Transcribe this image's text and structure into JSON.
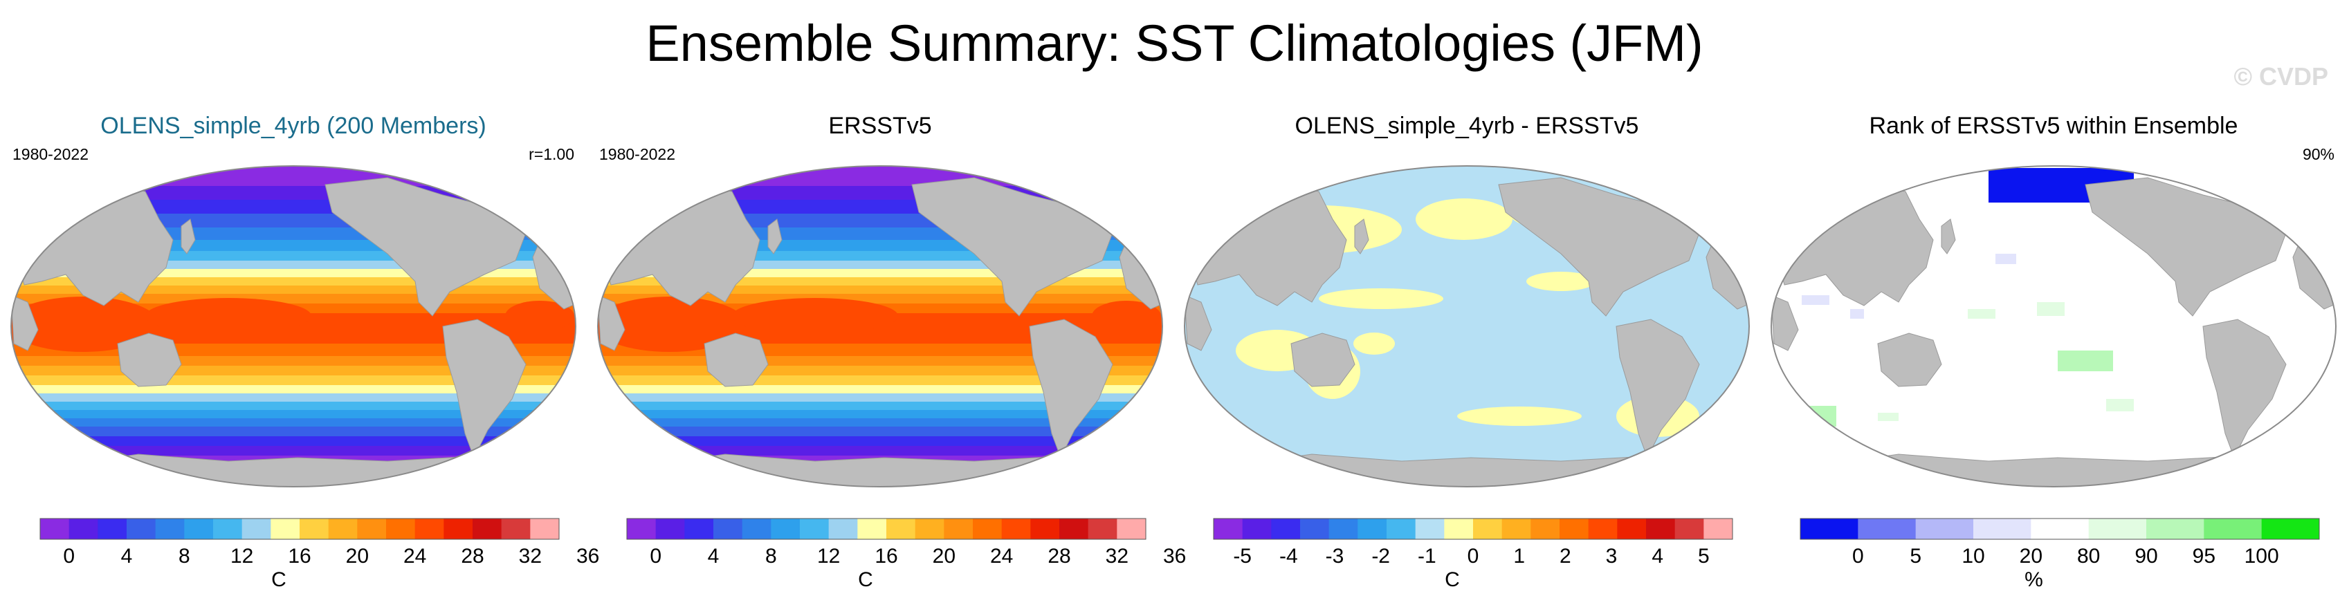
{
  "title": "Ensemble Summary: SST Climatologies (JFM)",
  "watermark": "© CVDP",
  "colors": {
    "land": "#bdbdbd",
    "ocean_border": "#8a8a8a",
    "panel1_title": "#1a6c8c"
  },
  "chart_data": [
    {
      "type": "heatmap",
      "title": "OLENS_simple_4yrb (200 Members)",
      "left_label": "1980-2022",
      "right_label": "r=1.00",
      "colorbar": {
        "unit": "C",
        "tick_labels": [
          "0",
          "4",
          "8",
          "12",
          "16",
          "20",
          "24",
          "28",
          "32",
          "36"
        ],
        "colors": [
          "#8a2be2",
          "#5a1fe6",
          "#3a2cf0",
          "#3860e8",
          "#2f82ea",
          "#2ea0ec",
          "#45b7ef",
          "#9dd2f0",
          "#ffffa8",
          "#ffd040",
          "#ffb020",
          "#ff9010",
          "#ff7000",
          "#ff4a00",
          "#ee2200",
          "#d01010",
          "#d83a3a",
          "#ffaaaa"
        ]
      }
    },
    {
      "type": "heatmap",
      "title": "ERSSTv5",
      "left_label": "1980-2022",
      "right_label": "",
      "colorbar": {
        "unit": "C",
        "tick_labels": [
          "0",
          "4",
          "8",
          "12",
          "16",
          "20",
          "24",
          "28",
          "32",
          "36"
        ],
        "colors": [
          "#8a2be2",
          "#5a1fe6",
          "#3a2cf0",
          "#3860e8",
          "#2f82ea",
          "#2ea0ec",
          "#45b7ef",
          "#9dd2f0",
          "#ffffa8",
          "#ffd040",
          "#ffb020",
          "#ff9010",
          "#ff7000",
          "#ff4a00",
          "#ee2200",
          "#d01010",
          "#d83a3a",
          "#ffaaaa"
        ]
      }
    },
    {
      "type": "heatmap",
      "title": "OLENS_simple_4yrb - ERSSTv5",
      "left_label": "",
      "right_label": "",
      "colorbar": {
        "unit": "C",
        "tick_labels": [
          "-5",
          "-4",
          "-3",
          "-2",
          "-1",
          "0",
          "1",
          "2",
          "3",
          "4",
          "5"
        ],
        "colors": [
          "#8a2be2",
          "#5a1fe6",
          "#3a2cf0",
          "#3860e8",
          "#2f82ea",
          "#2ea0ec",
          "#45b7ef",
          "#b6e0f4",
          "#ffffa8",
          "#ffd040",
          "#ffb020",
          "#ff9010",
          "#ff7000",
          "#ff4a00",
          "#ee2200",
          "#d01010",
          "#d83a3a",
          "#ffaaaa"
        ]
      }
    },
    {
      "type": "heatmap",
      "title": "Rank of ERSSTv5 within Ensemble",
      "left_label": "",
      "right_label": "90%",
      "colorbar": {
        "unit": "%",
        "tick_labels": [
          "0",
          "5",
          "10",
          "20",
          "80",
          "90",
          "95",
          "100"
        ],
        "colors": [
          "#0a14f0",
          "#6e78f4",
          "#b4b8f8",
          "#e2e4fc",
          "#ffffff",
          "#e2fce2",
          "#b8f8b8",
          "#78f078",
          "#14e614"
        ]
      }
    }
  ]
}
